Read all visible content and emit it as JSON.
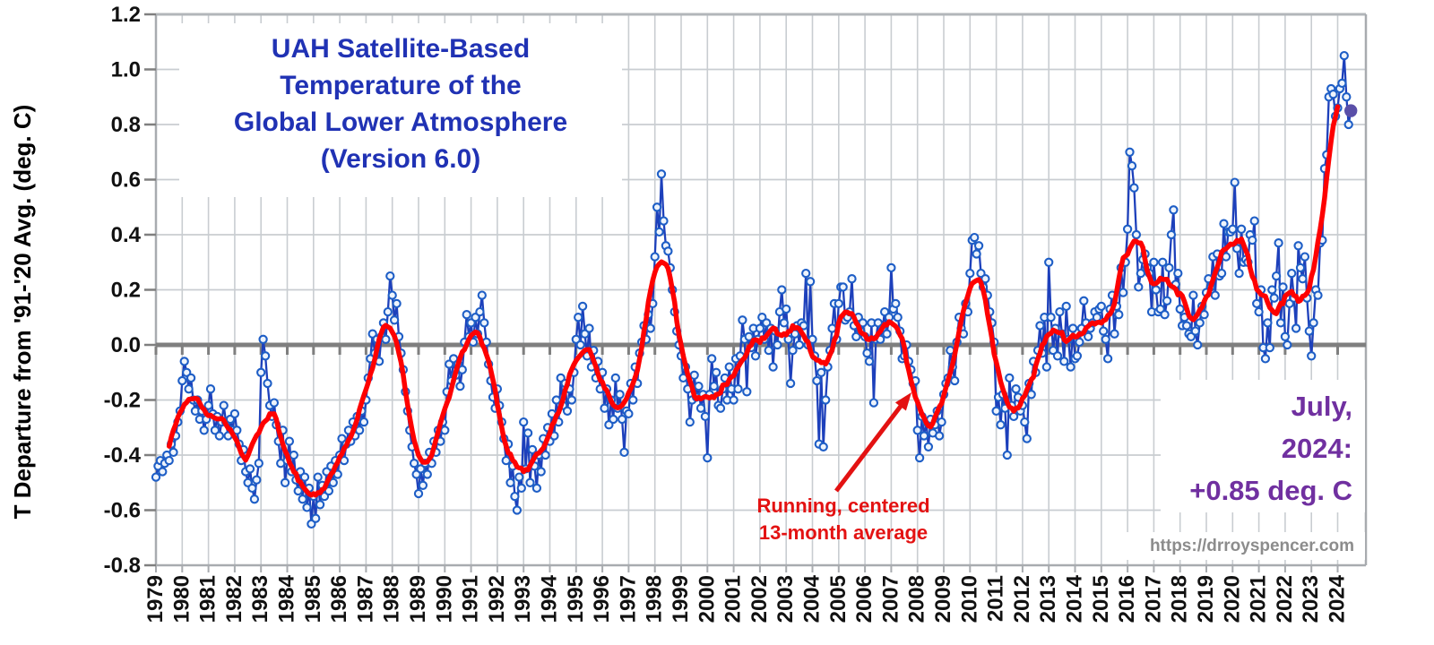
{
  "chart_data": {
    "type": "line",
    "title_lines": [
      "UAH Satellite-Based",
      "Temperature of the",
      "Global Lower Atmosphere",
      "(Version 6.0)"
    ],
    "ylabel": "T Departure from '91-'20 Avg. (deg. C)",
    "xlabel": "",
    "ylim": [
      -0.8,
      1.2
    ],
    "ytick_step": 0.2,
    "grid": true,
    "x_start": "1979-01",
    "x_end": "2024-07",
    "y_tick_labels": [
      "1.2",
      "1.0",
      "0.8",
      "0.6",
      "0.4",
      "0.2",
      "0.0",
      "-0.2",
      "-0.4",
      "-0.6",
      "-0.8"
    ],
    "x_year_labels": [
      "1979",
      "1980",
      "1981",
      "1982",
      "1983",
      "1984",
      "1985",
      "1986",
      "1987",
      "1988",
      "1989",
      "1990",
      "1991",
      "1992",
      "1993",
      "1994",
      "1995",
      "1996",
      "1997",
      "1998",
      "1999",
      "2000",
      "2001",
      "2002",
      "2003",
      "2004",
      "2005",
      "2006",
      "2007",
      "2008",
      "2009",
      "2010",
      "2011",
      "2012",
      "2013",
      "2014",
      "2015",
      "2016",
      "2017",
      "2018",
      "2019",
      "2020",
      "2021",
      "2022",
      "2023",
      "2024"
    ],
    "series": [
      {
        "name": "Monthly global lower-atmosphere temperature anomaly",
        "type": "line+markers",
        "marker": "open-circle",
        "color": "#1d40bb",
        "values": [
          -0.48,
          -0.44,
          -0.42,
          -0.46,
          -0.43,
          -0.4,
          -0.42,
          -0.36,
          -0.39,
          -0.33,
          -0.28,
          -0.24,
          -0.13,
          -0.06,
          -0.1,
          -0.16,
          -0.12,
          -0.2,
          -0.24,
          -0.2,
          -0.27,
          -0.24,
          -0.31,
          -0.27,
          -0.22,
          -0.16,
          -0.25,
          -0.31,
          -0.26,
          -0.33,
          -0.28,
          -0.22,
          -0.28,
          -0.33,
          -0.27,
          -0.31,
          -0.25,
          -0.31,
          -0.36,
          -0.42,
          -0.38,
          -0.46,
          -0.5,
          -0.45,
          -0.52,
          -0.56,
          -0.49,
          -0.43,
          -0.1,
          0.02,
          -0.04,
          -0.14,
          -0.22,
          -0.26,
          -0.21,
          -0.29,
          -0.35,
          -0.43,
          -0.31,
          -0.5,
          -0.42,
          -0.35,
          -0.46,
          -0.4,
          -0.49,
          -0.53,
          -0.46,
          -0.56,
          -0.48,
          -0.59,
          -0.52,
          -0.65,
          -0.55,
          -0.63,
          -0.48,
          -0.58,
          -0.51,
          -0.55,
          -0.46,
          -0.53,
          -0.44,
          -0.5,
          -0.42,
          -0.47,
          -0.4,
          -0.34,
          -0.42,
          -0.36,
          -0.31,
          -0.35,
          -0.28,
          -0.33,
          -0.26,
          -0.31,
          -0.24,
          -0.28,
          -0.2,
          -0.12,
          -0.05,
          0.04,
          -0.03,
          0.02,
          -0.06,
          0.03,
          0.08,
          0.02,
          0.12,
          0.25,
          0.18,
          0.09,
          0.15,
          0.03,
          -0.03,
          -0.09,
          -0.17,
          -0.24,
          -0.31,
          -0.37,
          -0.43,
          -0.47,
          -0.54,
          -0.45,
          -0.51,
          -0.43,
          -0.47,
          -0.39,
          -0.43,
          -0.35,
          -0.39,
          -0.31,
          -0.35,
          -0.28,
          -0.31,
          -0.17,
          -0.07,
          -0.13,
          -0.05,
          -0.11,
          -0.07,
          -0.15,
          -0.09,
          0.01,
          0.11,
          0.03,
          0.08,
          0.01,
          0.1,
          0.04,
          0.12,
          0.18,
          0.08,
          0.01,
          -0.07,
          -0.13,
          -0.19,
          -0.23,
          -0.16,
          -0.22,
          -0.28,
          -0.34,
          -0.42,
          -0.36,
          -0.5,
          -0.44,
          -0.55,
          -0.6,
          -0.48,
          -0.52,
          -0.28,
          -0.45,
          -0.32,
          -0.5,
          -0.38,
          -0.44,
          -0.52,
          -0.4,
          -0.46,
          -0.34,
          -0.4,
          -0.3,
          -0.35,
          -0.25,
          -0.33,
          -0.2,
          -0.28,
          -0.12,
          -0.22,
          -0.14,
          -0.24,
          -0.16,
          -0.2,
          -0.1,
          0.02,
          0.1,
          0.0,
          0.14,
          0.04,
          -0.04,
          0.06,
          -0.08,
          -0.02,
          -0.12,
          -0.06,
          -0.16,
          -0.1,
          -0.23,
          -0.16,
          -0.29,
          -0.2,
          -0.27,
          -0.12,
          -0.23,
          -0.18,
          -0.27,
          -0.39,
          -0.24,
          -0.25,
          -0.14,
          -0.2,
          -0.08,
          -0.14,
          -0.03,
          0.01,
          0.07,
          0.02,
          0.11,
          0.06,
          0.15,
          0.32,
          0.5,
          0.41,
          0.62,
          0.45,
          0.36,
          0.34,
          0.28,
          0.2,
          0.12,
          0.05,
          0.0,
          -0.04,
          -0.12,
          -0.08,
          -0.16,
          -0.28,
          -0.2,
          -0.11,
          -0.19,
          -0.15,
          -0.23,
          -0.18,
          -0.26,
          -0.41,
          -0.18,
          -0.05,
          -0.15,
          -0.1,
          -0.22,
          -0.23,
          -0.16,
          -0.12,
          -0.2,
          -0.08,
          -0.16,
          -0.2,
          -0.05,
          -0.16,
          -0.04,
          0.09,
          0.02,
          -0.17,
          0.03,
          -0.01,
          0.06,
          -0.04,
          0.02,
          0.06,
          0.1,
          0.02,
          0.08,
          -0.02,
          0.06,
          -0.08,
          0.05,
          0.0,
          0.12,
          0.2,
          0.08,
          0.13,
          0.02,
          -0.14,
          -0.02,
          0.04,
          0.07,
          0.0,
          0.08,
          0.07,
          0.26,
          0.0,
          0.23,
          0.02,
          -0.04,
          -0.13,
          -0.36,
          -0.1,
          -0.37,
          -0.2,
          -0.08,
          -0.02,
          0.06,
          0.15,
          0.02,
          0.15,
          0.21,
          0.21,
          0.09,
          0.1,
          0.12,
          0.24,
          0.07,
          0.03,
          0.1,
          0.05,
          0.08,
          0.03,
          -0.03,
          -0.06,
          0.08,
          -0.21,
          0.02,
          0.08,
          0.02,
          0.06,
          0.12,
          0.04,
          0.1,
          0.28,
          0.13,
          0.15,
          0.1,
          0.05,
          -0.05,
          -0.04,
          0.0,
          -0.06,
          -0.09,
          -0.14,
          -0.13,
          -0.31,
          -0.41,
          -0.26,
          -0.33,
          -0.28,
          -0.37,
          -0.27,
          -0.32,
          -0.29,
          -0.24,
          -0.33,
          -0.28,
          -0.18,
          -0.14,
          -0.12,
          -0.02,
          -0.08,
          -0.13,
          0.01,
          0.1,
          0.06,
          0.04,
          0.15,
          0.12,
          0.26,
          0.38,
          0.39,
          0.33,
          0.36,
          0.26,
          0.21,
          0.24,
          0.18,
          0.12,
          0.08,
          0.01,
          -0.24,
          -0.19,
          -0.29,
          -0.18,
          -0.23,
          -0.4,
          -0.12,
          -0.22,
          -0.26,
          -0.16,
          -0.19,
          -0.24,
          -0.22,
          -0.28,
          -0.34,
          -0.14,
          -0.18,
          -0.06,
          -0.1,
          -0.02,
          0.07,
          -0.03,
          0.1,
          -0.08,
          0.3,
          0.1,
          -0.02,
          0.06,
          -0.04,
          0.12,
          0.04,
          -0.06,
          0.14,
          0.02,
          -0.08,
          0.06,
          -0.05,
          -0.04,
          0.01,
          0.06,
          0.16,
          0.08,
          0.03,
          0.06,
          0.08,
          0.12,
          0.1,
          0.13,
          0.14,
          0.05,
          0.02,
          -0.05,
          0.13,
          0.18,
          0.04,
          0.14,
          0.11,
          0.28,
          0.19,
          0.3,
          0.42,
          0.7,
          0.65,
          0.57,
          0.4,
          0.21,
          0.26,
          0.31,
          0.33,
          0.28,
          0.26,
          0.12,
          0.3,
          0.2,
          0.12,
          0.13,
          0.3,
          0.11,
          0.16,
          0.28,
          0.4,
          0.49,
          0.22,
          0.26,
          0.13,
          0.07,
          0.1,
          0.07,
          0.04,
          0.03,
          0.18,
          0.05,
          0.0,
          0.08,
          0.14,
          0.11,
          0.19,
          0.24,
          0.21,
          0.32,
          0.18,
          0.33,
          0.25,
          0.26,
          0.44,
          0.32,
          0.41,
          0.41,
          0.42,
          0.59,
          0.35,
          0.26,
          0.42,
          0.3,
          0.31,
          0.3,
          0.4,
          0.38,
          0.45,
          0.15,
          0.12,
          0.2,
          -0.01,
          -0.05,
          0.08,
          -0.01,
          0.2,
          0.17,
          0.25,
          0.37,
          0.08,
          0.21,
          0.03,
          0.0,
          0.15,
          0.26,
          0.17,
          0.06,
          0.36,
          0.28,
          0.24,
          0.32,
          0.17,
          0.05,
          -0.04,
          0.08,
          0.2,
          0.18,
          0.37,
          0.38,
          0.64,
          0.69,
          0.9,
          0.93,
          0.91,
          0.83,
          0.86,
          0.93,
          0.95,
          1.05,
          0.9,
          0.8,
          0.85
        ]
      },
      {
        "name": "Running, centered 13-month average",
        "type": "line",
        "color": "#fe0101",
        "window_months": 13,
        "derived": "13-month centered mean computed from the monthly series"
      }
    ],
    "latest_point": {
      "label": "July, 2024",
      "value": 0.85,
      "color": "#5a4fa8"
    }
  },
  "annotations": {
    "running_avg": {
      "line1": "Running, centered",
      "line2": "13-month average",
      "color": "#e31212"
    },
    "latest": {
      "line1": "July,",
      "line2": "2024:",
      "line3": "+0.85 deg. C",
      "color": "#7030a0"
    },
    "url": {
      "text": "https://drroyspencer.com",
      "color": "#8c8c8c"
    }
  },
  "colors": {
    "title": "#2032b4",
    "grid": "#c9cdd1",
    "zero_line": "#7f7f7f",
    "axis": "#a8abaf",
    "top_border": "#b2b6ba",
    "series_line": "#1d40bb",
    "marker_stroke": "#1e5ec6",
    "marker_fill": "#eef4fc",
    "avg_line": "#fe0101",
    "tick_label": "#111111"
  }
}
